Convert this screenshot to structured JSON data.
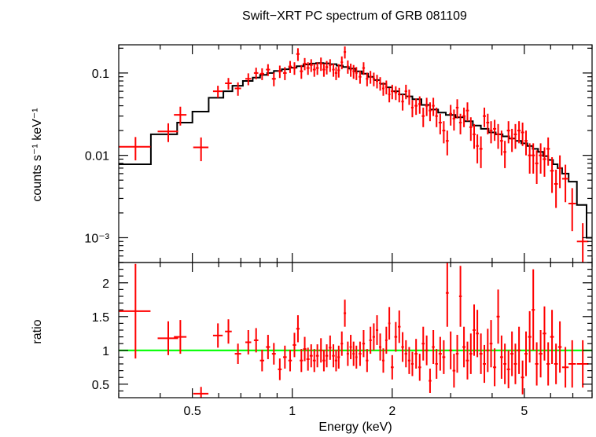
{
  "title": "Swift−XRT PC spectrum of GRB 081109",
  "colors": {
    "data": "#ff0000",
    "model": "#000000",
    "unity": "#00ff00",
    "frame": "#000000"
  },
  "chart_data": [
    {
      "type": "scatter",
      "panel": "spectrum",
      "ylabel": "counts s⁻¹ keV⁻¹",
      "xlabel": "",
      "xscale": "log",
      "yscale": "log",
      "xlim": [
        0.3,
        8.0
      ],
      "ylim": [
        0.0005,
        0.22
      ],
      "yticks": [
        {
          "value": 0.1,
          "label": "0.1"
        },
        {
          "value": 0.01,
          "label": "0.01"
        },
        {
          "value": 0.001,
          "label": "10⁻³"
        }
      ],
      "series": [
        {
          "kind": "data",
          "x": [
            0.337,
            0.423,
            0.46,
            0.531,
            0.597,
            0.642,
            0.686,
            0.737,
            0.778,
            0.811,
            0.845,
            0.88,
            0.917,
            0.95,
            0.985,
            1.015,
            1.04,
            1.065,
            1.09,
            1.115,
            1.14,
            1.165,
            1.19,
            1.22,
            1.245,
            1.27,
            1.3,
            1.33,
            1.355,
            1.38,
            1.41,
            1.44,
            1.47,
            1.5,
            1.53,
            1.56,
            1.6,
            1.64,
            1.68,
            1.72,
            1.76,
            1.8,
            1.84,
            1.88,
            1.92,
            1.96,
            2.0,
            2.05,
            2.1,
            2.15,
            2.2,
            2.25,
            2.3,
            2.36,
            2.42,
            2.48,
            2.54,
            2.6,
            2.66,
            2.72,
            2.79,
            2.86,
            2.93,
            3.0,
            3.07,
            3.14,
            3.21,
            3.29,
            3.37,
            3.45,
            3.53,
            3.61,
            3.7,
            3.79,
            3.88,
            3.97,
            4.07,
            4.17,
            4.27,
            4.37,
            4.48,
            4.59,
            4.7,
            4.82,
            4.94,
            5.06,
            5.19,
            5.32,
            5.45,
            5.6,
            5.75,
            5.9,
            6.06,
            6.23,
            6.4,
            6.65,
            6.97,
            7.5
          ],
          "y": [
            0.0127,
            0.0195,
            0.031,
            0.0125,
            0.06,
            0.075,
            0.065,
            0.085,
            0.1,
            0.098,
            0.11,
            0.085,
            0.105,
            0.1,
            0.12,
            0.115,
            0.17,
            0.105,
            0.13,
            0.115,
            0.125,
            0.11,
            0.115,
            0.13,
            0.11,
            0.118,
            0.125,
            0.11,
            0.1,
            0.108,
            0.135,
            0.18,
            0.12,
            0.11,
            0.105,
            0.1,
            0.09,
            0.115,
            0.085,
            0.09,
            0.085,
            0.08,
            0.075,
            0.065,
            0.068,
            0.055,
            0.06,
            0.058,
            0.055,
            0.045,
            0.06,
            0.052,
            0.038,
            0.04,
            0.042,
            0.03,
            0.04,
            0.035,
            0.04,
            0.03,
            0.025,
            0.02,
            0.015,
            0.032,
            0.028,
            0.038,
            0.025,
            0.03,
            0.035,
            0.022,
            0.018,
            0.013,
            0.012,
            0.03,
            0.025,
            0.02,
            0.021,
            0.018,
            0.015,
            0.011,
            0.02,
            0.016,
            0.018,
            0.02,
            0.019,
            0.015,
            0.01,
            0.01,
            0.008,
            0.01,
            0.009,
            0.012,
            0.0065,
            0.0045,
            0.007,
            0.0052,
            0.0026,
            0.0009
          ],
          "xerr": [
            0.037,
            0.03,
            0.02,
            0.028,
            0.02,
            0.015,
            0.015,
            0.015,
            0.012,
            0.012,
            0.012,
            0.012,
            0.012,
            0.012,
            0.012,
            0.012,
            0.012,
            0.012,
            0.012,
            0.012,
            0.012,
            0.012,
            0.012,
            0.012,
            0.012,
            0.012,
            0.012,
            0.012,
            0.012,
            0.012,
            0.012,
            0.012,
            0.012,
            0.012,
            0.012,
            0.012,
            0.015,
            0.015,
            0.015,
            0.015,
            0.015,
            0.015,
            0.015,
            0.015,
            0.015,
            0.015,
            0.02,
            0.02,
            0.02,
            0.02,
            0.02,
            0.02,
            0.02,
            0.025,
            0.025,
            0.025,
            0.025,
            0.025,
            0.025,
            0.025,
            0.03,
            0.03,
            0.03,
            0.03,
            0.03,
            0.03,
            0.03,
            0.035,
            0.035,
            0.035,
            0.035,
            0.035,
            0.04,
            0.04,
            0.04,
            0.04,
            0.045,
            0.045,
            0.045,
            0.045,
            0.05,
            0.05,
            0.05,
            0.055,
            0.055,
            0.055,
            0.06,
            0.06,
            0.06,
            0.07,
            0.07,
            0.07,
            0.08,
            0.08,
            0.08,
            0.15,
            0.18,
            0.3
          ],
          "yerr": [
            0.004,
            0.005,
            0.008,
            0.004,
            0.01,
            0.012,
            0.012,
            0.014,
            0.016,
            0.016,
            0.018,
            0.016,
            0.018,
            0.018,
            0.02,
            0.02,
            0.03,
            0.02,
            0.022,
            0.02,
            0.022,
            0.02,
            0.02,
            0.024,
            0.02,
            0.022,
            0.022,
            0.02,
            0.018,
            0.02,
            0.024,
            0.03,
            0.022,
            0.02,
            0.02,
            0.018,
            0.016,
            0.02,
            0.016,
            0.016,
            0.016,
            0.015,
            0.014,
            0.012,
            0.013,
            0.011,
            0.012,
            0.011,
            0.011,
            0.01,
            0.012,
            0.011,
            0.009,
            0.009,
            0.01,
            0.008,
            0.01,
            0.009,
            0.01,
            0.008,
            0.007,
            0.006,
            0.005,
            0.009,
            0.008,
            0.01,
            0.007,
            0.008,
            0.009,
            0.007,
            0.006,
            0.005,
            0.005,
            0.008,
            0.007,
            0.006,
            0.006,
            0.006,
            0.005,
            0.004,
            0.006,
            0.005,
            0.006,
            0.006,
            0.006,
            0.005,
            0.004,
            0.004,
            0.0035,
            0.004,
            0.0035,
            0.0045,
            0.003,
            0.0022,
            0.003,
            0.0025,
            0.0014,
            0.0006
          ]
        },
        {
          "kind": "model",
          "step_edges": [
            0.3,
            0.375,
            0.45,
            0.5,
            0.56,
            0.62,
            0.66,
            0.71,
            0.76,
            0.8,
            0.84,
            0.88,
            0.93,
            0.98,
            1.03,
            1.08,
            1.13,
            1.18,
            1.24,
            1.3,
            1.36,
            1.42,
            1.48,
            1.55,
            1.62,
            1.69,
            1.76,
            1.84,
            1.92,
            2.0,
            2.1,
            2.2,
            2.3,
            2.45,
            2.6,
            2.75,
            2.9,
            3.1,
            3.3,
            3.5,
            3.7,
            3.9,
            4.1,
            4.3,
            4.5,
            4.7,
            4.9,
            5.1,
            5.3,
            5.5,
            5.7,
            5.9,
            6.1,
            6.3,
            6.5,
            6.8,
            7.2,
            7.7,
            8.0
          ],
          "step_values": [
            0.0078,
            0.018,
            0.025,
            0.034,
            0.05,
            0.06,
            0.07,
            0.08,
            0.088,
            0.095,
            0.1,
            0.106,
            0.111,
            0.116,
            0.121,
            0.127,
            0.13,
            0.132,
            0.131,
            0.128,
            0.123,
            0.118,
            0.113,
            0.105,
            0.098,
            0.09,
            0.082,
            0.074,
            0.067,
            0.06,
            0.055,
            0.052,
            0.048,
            0.041,
            0.036,
            0.033,
            0.031,
            0.029,
            0.026,
            0.023,
            0.021,
            0.019,
            0.018,
            0.017,
            0.016,
            0.015,
            0.014,
            0.013,
            0.012,
            0.011,
            0.0098,
            0.0088,
            0.0078,
            0.007,
            0.006,
            0.0048,
            0.0025,
            0.001
          ]
        }
      ]
    },
    {
      "type": "scatter",
      "panel": "ratio",
      "ylabel": "ratio",
      "xlabel": "Energy (keV)",
      "xscale": "log",
      "yscale": "linear",
      "xlim": [
        0.3,
        8.0
      ],
      "ylim": [
        0.3,
        2.3
      ],
      "xticks": [
        {
          "value": 0.5,
          "label": "0.5"
        },
        {
          "value": 1,
          "label": "1"
        },
        {
          "value": 2,
          "label": "2"
        },
        {
          "value": 5,
          "label": "5"
        }
      ],
      "yticks": [
        {
          "value": 0.5,
          "label": "0.5"
        },
        {
          "value": 1,
          "label": "1"
        },
        {
          "value": 1.5,
          "label": "1.5"
        },
        {
          "value": 2,
          "label": "2"
        }
      ],
      "reference_line": 1.0,
      "series": [
        {
          "kind": "ratio",
          "x": [
            0.337,
            0.423,
            0.46,
            0.531,
            0.597,
            0.642,
            0.686,
            0.737,
            0.778,
            0.811,
            0.845,
            0.88,
            0.917,
            0.95,
            0.985,
            1.015,
            1.04,
            1.065,
            1.09,
            1.115,
            1.14,
            1.165,
            1.19,
            1.22,
            1.245,
            1.27,
            1.3,
            1.33,
            1.355,
            1.38,
            1.41,
            1.44,
            1.47,
            1.5,
            1.53,
            1.56,
            1.6,
            1.64,
            1.68,
            1.72,
            1.76,
            1.8,
            1.84,
            1.88,
            1.92,
            1.96,
            2.0,
            2.05,
            2.1,
            2.15,
            2.2,
            2.25,
            2.3,
            2.36,
            2.42,
            2.48,
            2.54,
            2.6,
            2.66,
            2.72,
            2.79,
            2.86,
            2.93,
            3.0,
            3.07,
            3.14,
            3.21,
            3.29,
            3.37,
            3.45,
            3.53,
            3.61,
            3.7,
            3.79,
            3.88,
            3.97,
            4.07,
            4.17,
            4.27,
            4.37,
            4.48,
            4.59,
            4.7,
            4.82,
            4.94,
            5.06,
            5.19,
            5.32,
            5.45,
            5.6,
            5.75,
            5.9,
            6.06,
            6.23,
            6.4,
            6.65,
            6.97,
            7.5
          ],
          "y": [
            1.58,
            1.18,
            1.2,
            0.36,
            1.22,
            1.28,
            0.95,
            1.12,
            1.15,
            0.85,
            1.05,
            0.95,
            0.72,
            0.9,
            0.85,
            1.08,
            1.32,
            0.85,
            1.02,
            0.87,
            0.92,
            0.85,
            0.92,
            1.0,
            0.85,
            0.92,
            1.04,
            0.92,
            0.85,
            0.9,
            1.1,
            1.55,
            0.95,
            1.05,
            0.95,
            0.9,
            0.95,
            1.1,
            0.85,
            1.15,
            1.2,
            1.3,
            1.05,
            0.85,
            1.15,
            1.4,
            0.75,
            1.2,
            1.35,
            1.05,
            0.95,
            0.85,
            0.8,
            0.95,
            0.75,
            1.1,
            1.0,
            0.55,
            1.05,
            0.8,
            0.95,
            0.9,
            1.85,
            1.0,
            0.7,
            0.95,
            1.8,
            1.05,
            0.85,
            0.95,
            1.3,
            1.25,
            0.95,
            0.8,
            1.0,
            1.1,
            0.75,
            1.5,
            0.9,
            0.8,
            0.72,
            0.95,
            0.8,
            1.0,
            0.6,
            0.95,
            1.2,
            1.6,
            0.8,
            0.95,
            1.25,
            0.8,
            1.2,
            0.8,
            1.05,
            0.75,
            0.8,
            0.8
          ],
          "xerr": [
            0.037,
            0.03,
            0.02,
            0.028,
            0.02,
            0.015,
            0.015,
            0.015,
            0.012,
            0.012,
            0.012,
            0.012,
            0.012,
            0.012,
            0.012,
            0.012,
            0.012,
            0.012,
            0.012,
            0.012,
            0.012,
            0.012,
            0.012,
            0.012,
            0.012,
            0.012,
            0.012,
            0.012,
            0.012,
            0.012,
            0.012,
            0.012,
            0.012,
            0.012,
            0.012,
            0.012,
            0.015,
            0.015,
            0.015,
            0.015,
            0.015,
            0.015,
            0.015,
            0.015,
            0.015,
            0.015,
            0.02,
            0.02,
            0.02,
            0.02,
            0.02,
            0.02,
            0.02,
            0.025,
            0.025,
            0.025,
            0.025,
            0.025,
            0.025,
            0.025,
            0.03,
            0.03,
            0.03,
            0.03,
            0.03,
            0.03,
            0.03,
            0.035,
            0.035,
            0.035,
            0.035,
            0.035,
            0.04,
            0.04,
            0.04,
            0.04,
            0.045,
            0.045,
            0.045,
            0.045,
            0.05,
            0.05,
            0.05,
            0.055,
            0.055,
            0.055,
            0.06,
            0.06,
            0.06,
            0.07,
            0.07,
            0.07,
            0.08,
            0.08,
            0.08,
            0.15,
            0.18,
            0.3
          ],
          "yerr": [
            0.7,
            0.25,
            0.25,
            0.1,
            0.18,
            0.18,
            0.15,
            0.18,
            0.18,
            0.16,
            0.18,
            0.16,
            0.16,
            0.17,
            0.16,
            0.18,
            0.2,
            0.17,
            0.18,
            0.17,
            0.17,
            0.17,
            0.17,
            0.18,
            0.16,
            0.17,
            0.18,
            0.17,
            0.16,
            0.17,
            0.18,
            0.2,
            0.18,
            0.18,
            0.18,
            0.17,
            0.18,
            0.2,
            0.17,
            0.2,
            0.2,
            0.22,
            0.2,
            0.18,
            0.2,
            0.24,
            0.18,
            0.22,
            0.24,
            0.22,
            0.2,
            0.2,
            0.18,
            0.22,
            0.2,
            0.25,
            0.22,
            0.18,
            0.25,
            0.22,
            0.25,
            0.25,
            0.5,
            0.28,
            0.25,
            0.28,
            0.45,
            0.3,
            0.28,
            0.3,
            0.38,
            0.35,
            0.3,
            0.28,
            0.32,
            0.35,
            0.28,
            0.4,
            0.32,
            0.3,
            0.28,
            0.33,
            0.3,
            0.35,
            0.25,
            0.33,
            0.38,
            0.6,
            0.32,
            0.35,
            0.4,
            0.32,
            0.4,
            0.3,
            0.38,
            0.3,
            0.35,
            0.35
          ]
        }
      ]
    }
  ]
}
